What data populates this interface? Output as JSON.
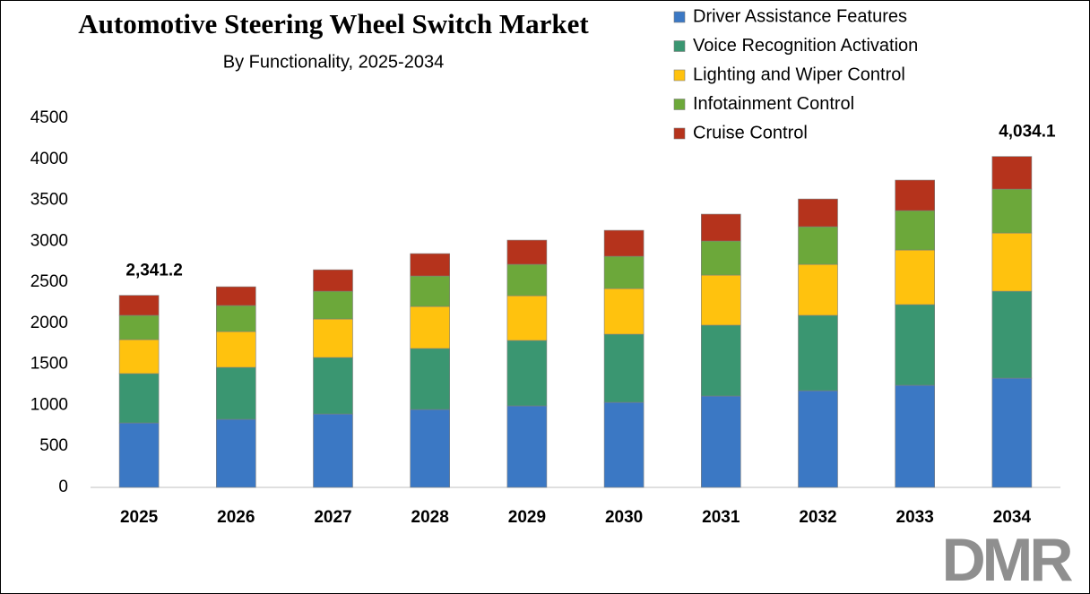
{
  "chart_data": {
    "type": "stacked_bar",
    "title": "Automotive Steering Wheel Switch Market",
    "subtitle": "By Functionality, 2025-2034",
    "categories": [
      "2025",
      "2026",
      "2027",
      "2028",
      "2029",
      "2030",
      "2031",
      "2032",
      "2033",
      "2034"
    ],
    "series": [
      {
        "name": "Driver Assistance Features",
        "color": "#3b78c4",
        "values": [
          786,
          830,
          895,
          950,
          994,
          1037,
          1114,
          1179,
          1245,
          1332
        ]
      },
      {
        "name": "Voice Recognition Activation",
        "color": "#3a9671",
        "values": [
          601,
          633,
          688,
          743,
          797,
          830,
          863,
          918,
          983,
          1059
        ]
      },
      {
        "name": "Lighting and Wiper Control",
        "color": "#ffc20e",
        "values": [
          415,
          437,
          470,
          513,
          546,
          557,
          611,
          622,
          666,
          710
        ]
      },
      {
        "name": "Infotainment Control",
        "color": "#6ca83a",
        "values": [
          295,
          317,
          338,
          371,
          382,
          393,
          415,
          459,
          480,
          535
        ]
      },
      {
        "name": "Cruise Control",
        "color": "#b5331c",
        "values": [
          244.2,
          229,
          262,
          273,
          295,
          317,
          328,
          338,
          372,
          398.1
        ]
      }
    ],
    "totals": {
      "values": [
        2341.2,
        null,
        null,
        null,
        null,
        null,
        null,
        null,
        null,
        4034.1
      ],
      "value_labels": [
        "2,341.2",
        null,
        null,
        null,
        null,
        null,
        null,
        null,
        null,
        "4,034.1"
      ]
    },
    "ylim": [
      0,
      4500
    ],
    "yticks": [
      0,
      500,
      1000,
      1500,
      2000,
      2500,
      3000,
      3500,
      4000,
      4500
    ],
    "grid": false,
    "legend": "top-right",
    "logo": "DMR"
  }
}
